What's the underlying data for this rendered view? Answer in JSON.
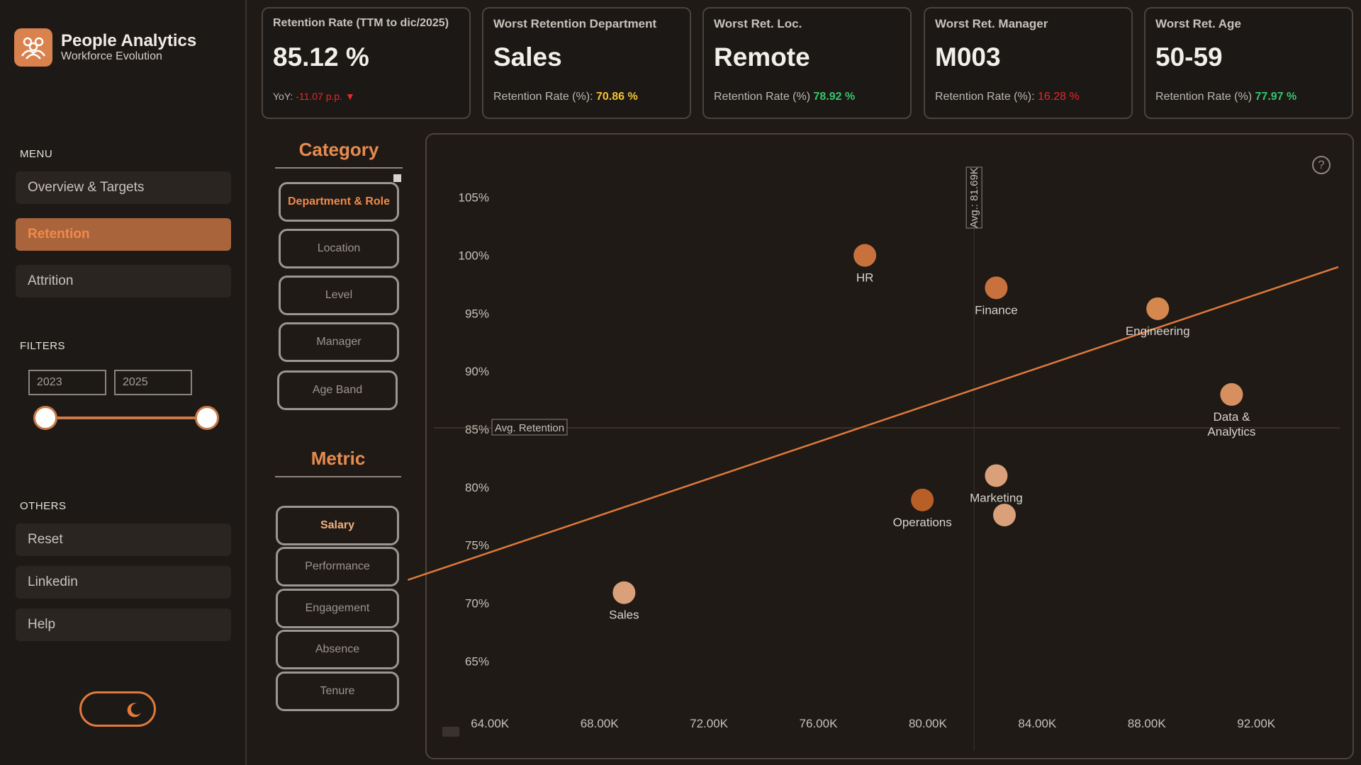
{
  "app": {
    "title": "People Analytics",
    "subtitle": "Workforce Evolution"
  },
  "sidebar": {
    "menu_label": "MENU",
    "menu": [
      {
        "label": "Overview & Targets",
        "active": false
      },
      {
        "label": "Retention",
        "active": true
      },
      {
        "label": "Attrition",
        "active": false
      }
    ],
    "filters_label": "FILTERS",
    "year_from": "2023",
    "year_to": "2025",
    "others_label": "OTHERS",
    "others": [
      {
        "label": "Reset"
      },
      {
        "label": "Linkedin"
      },
      {
        "label": "Help"
      }
    ],
    "theme_toggle_icon": "moon-icon"
  },
  "kpis": [
    {
      "title": "Retention Rate (TTM to dic/2025)",
      "value": "85.12 %",
      "foot_label": "YoY:",
      "foot_value": "-11.07 p.p. ▼",
      "foot_color": "red"
    },
    {
      "title": "Worst Retention Department",
      "value": "Sales",
      "foot_label": "Retention Rate (%):",
      "foot_value": "70.86 %",
      "foot_color": "yellow"
    },
    {
      "title": "Worst Ret. Loc.",
      "value": "Remote",
      "foot_label": "Retention Rate (%)",
      "foot_value": "78.92 %",
      "foot_color": "green"
    },
    {
      "title": "Worst Ret. Manager",
      "value": "M003",
      "foot_label": "Retention Rate (%):",
      "foot_value": "16.28 %",
      "foot_color": "red"
    },
    {
      "title": "Worst Ret. Age",
      "value": "50-59",
      "foot_label": "Retention Rate (%)",
      "foot_value": "77.97 %",
      "foot_color": "green"
    }
  ],
  "category": {
    "title": "Category",
    "options": [
      "Department & Role",
      "Location",
      "Level",
      "Manager",
      "Age Band"
    ],
    "selected": "Department & Role"
  },
  "metric": {
    "title": "Metric",
    "options": [
      "Salary",
      "Performance",
      "Engagement",
      "Absence",
      "Tenure"
    ],
    "selected": "Salary"
  },
  "colors": {
    "accent": "#e07a3b",
    "bg": "#1f1a16"
  },
  "chart_data": {
    "type": "scatter",
    "x_ticks": [
      "64.00K",
      "68.00K",
      "72.00K",
      "76.00K",
      "80.00K",
      "84.00K",
      "88.00K",
      "92.00K"
    ],
    "y_ticks": [
      "105%",
      "100%",
      "95%",
      "90%",
      "85%",
      "80%",
      "75%",
      "70%",
      "65%"
    ],
    "xlim": [
      62000,
      95000
    ],
    "ylim": [
      63,
      107
    ],
    "points": [
      {
        "label": "HR",
        "x": 77700,
        "y": 100.0,
        "color": "#c9713c"
      },
      {
        "label": "Finance",
        "x": 82500,
        "y": 97.2,
        "color": "#c9713c"
      },
      {
        "label": "Engineering",
        "x": 88400,
        "y": 95.4,
        "color": "#d4884f"
      },
      {
        "label": "Data & Analytics",
        "x": 91100,
        "y": 88.0,
        "color": "#d69060"
      },
      {
        "label": "Marketing",
        "x": 82500,
        "y": 81.0,
        "color": "#d9a07a"
      },
      {
        "label": "",
        "x": 82800,
        "y": 77.6,
        "color": "#d9a07a"
      },
      {
        "label": "Operations",
        "x": 79800,
        "y": 78.9,
        "color": "#b85f27"
      },
      {
        "label": "Sales",
        "x": 68900,
        "y": 70.9,
        "color": "#d9a07a"
      }
    ],
    "avg_x_label": "Avg.: 81.69K",
    "avg_x": 81690,
    "avg_y_label": "Avg. Retention",
    "avg_y": 85.12,
    "trend_line": {
      "x1": 61000,
      "y1": 72.0,
      "x2": 95000,
      "y2": 99.0
    },
    "trend_color": "#e07a3b"
  }
}
